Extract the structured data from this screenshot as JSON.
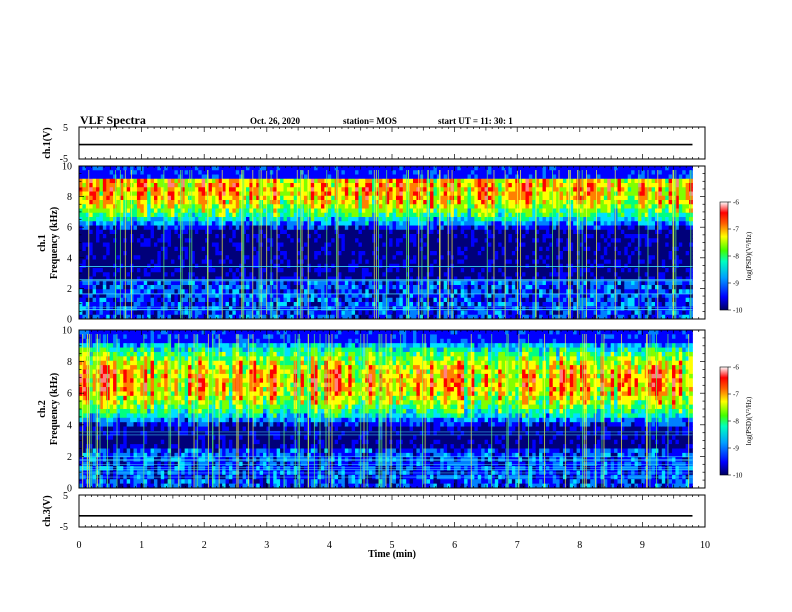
{
  "header": {
    "title": "VLF Spectra",
    "date": "Oct. 26, 2020",
    "station": "station= MOS",
    "start_ut": "start  UT =   11: 30: 1"
  },
  "chart_data": [
    {
      "type": "line",
      "panel": "ch1-waveform",
      "ylabel": "ch.1(V)",
      "xlim": [
        0,
        10
      ],
      "ylim": [
        -5,
        5
      ],
      "yticks": [
        "5",
        "-5"
      ],
      "series": [
        {
          "x": [
            0,
            9.8
          ],
          "values": [
            -0.5,
            -0.5
          ]
        }
      ]
    },
    {
      "type": "heatmap",
      "panel": "ch1-spectrogram",
      "ylabel": "ch.1",
      "ylabel2": "Frequency (kHz)",
      "xlim": [
        0,
        10
      ],
      "ylim": [
        0,
        10
      ],
      "yticks": [
        "0",
        "2",
        "4",
        "6",
        "8",
        "10"
      ],
      "data_xlim": [
        0,
        9.8
      ],
      "band_peak_khz": [
        8,
        9
      ],
      "colorbar": {
        "label": "log(PSD)(V²/Hz)",
        "range": [
          -10,
          -6
        ],
        "ticks": [
          "-6",
          "-7",
          "-8",
          "-9",
          "-10"
        ]
      }
    },
    {
      "type": "heatmap",
      "panel": "ch2-spectrogram",
      "ylabel": "ch.2",
      "ylabel2": "Frequency (kHz)",
      "xlim": [
        0,
        10
      ],
      "ylim": [
        0,
        10
      ],
      "yticks": [
        "0",
        "2",
        "4",
        "6",
        "8",
        "10"
      ],
      "data_xlim": [
        0,
        9.8
      ],
      "band_peak_khz": [
        6,
        7.5
      ],
      "colorbar": {
        "label": "log(PSD)(V²/Hz)",
        "range": [
          -10,
          -6
        ],
        "ticks": [
          "-6",
          "-7",
          "-8",
          "-9",
          "-10"
        ]
      }
    },
    {
      "type": "line",
      "panel": "ch3-waveform",
      "ylabel": "ch.3(V)",
      "xlabel": "Time (min)",
      "xlim": [
        0,
        10
      ],
      "ylim": [
        -5,
        5
      ],
      "yticks": [
        "5",
        "-5"
      ],
      "xticks": [
        "0",
        "1",
        "2",
        "3",
        "4",
        "5",
        "6",
        "7",
        "8",
        "9",
        "10"
      ],
      "series": [
        {
          "x": [
            0,
            9.8
          ],
          "values": [
            -1.5,
            -1.5
          ]
        }
      ]
    }
  ],
  "colormap": [
    "#00007a",
    "#0000ff",
    "#0080ff",
    "#00e0ff",
    "#00ff80",
    "#80ff00",
    "#ffff00",
    "#ff8000",
    "#ff0000",
    "#ff8080",
    "#ffffff"
  ]
}
